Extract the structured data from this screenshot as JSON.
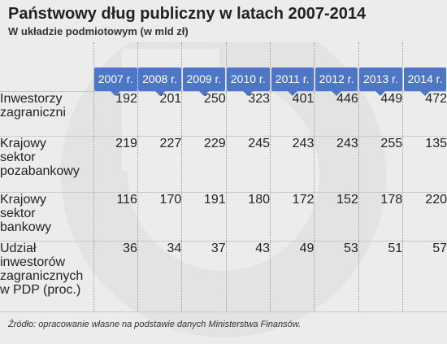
{
  "header": {
    "title": "Państwowy dług publiczny w latach 2007-2014",
    "subtitle": "W układzie podmiotowym (w mld zł)"
  },
  "chart_data": {
    "type": "table",
    "title": "Państwowy dług publiczny w latach 2007-2014",
    "subtitle": "W układzie podmiotowym (w mld zł)",
    "columns": [
      "2007 r.",
      "2008 r.",
      "2009 r.",
      "2010 r.",
      "2011 r.",
      "2012 r.",
      "2013 r.",
      "2014 r."
    ],
    "rows": [
      {
        "label": [
          "Inwestorzy",
          "zagraniczni"
        ],
        "values": [
          192,
          201,
          250,
          323,
          401,
          446,
          449,
          472
        ]
      },
      {
        "label": [
          "Krajowy",
          "sektor",
          "pozabankowy"
        ],
        "values": [
          219,
          227,
          229,
          245,
          243,
          243,
          255,
          135
        ]
      },
      {
        "label": [
          "Krajowy",
          "sektor",
          "bankowy"
        ],
        "values": [
          116,
          170,
          191,
          180,
          172,
          152,
          178,
          220
        ]
      },
      {
        "label": [
          "Udział",
          "inwestorów",
          "zagranicznych",
          "w PDP (proc.)"
        ],
        "values": [
          36,
          34,
          37,
          43,
          49,
          53,
          51,
          57
        ]
      }
    ]
  },
  "footer": {
    "source": "Źródło: opracowanie własne na podstawie danych Ministerstwa Finansów."
  },
  "colors": {
    "background": "#ececec",
    "badge": "#4d77c5",
    "badge_text": "#ffffff",
    "watermark": "#e2e2e2"
  }
}
